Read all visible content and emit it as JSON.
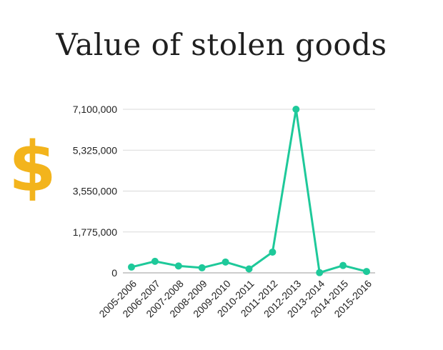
{
  "title": "Value of stolen goods",
  "icon": {
    "name": "dollar-sign-icon",
    "glyph": "$",
    "color": "#f3b41c"
  },
  "chart_data": {
    "type": "line",
    "title": "Value of stolen goods",
    "xlabel": "",
    "ylabel": "",
    "categories": [
      "2005-2006",
      "2006-2007",
      "2007-2008",
      "2008-2009",
      "2009-2010",
      "2010-2011",
      "2011-2012",
      "2012-2013",
      "2013-2014",
      "2014-2015",
      "2015-2016"
    ],
    "series": [
      {
        "values": [
          250000,
          500000,
          300000,
          220000,
          470000,
          170000,
          900000,
          7100000,
          10000,
          320000,
          60000
        ],
        "color": "#1ec99a"
      }
    ],
    "yticks": [
      0,
      1775000,
      3550000,
      5325000,
      7100000
    ],
    "ytick_labels": [
      "0",
      "1,775,000",
      "3,550,000",
      "5,325,000",
      "7,100,000"
    ],
    "ylim": [
      0,
      7100000
    ],
    "grid": true,
    "legend": "none"
  }
}
